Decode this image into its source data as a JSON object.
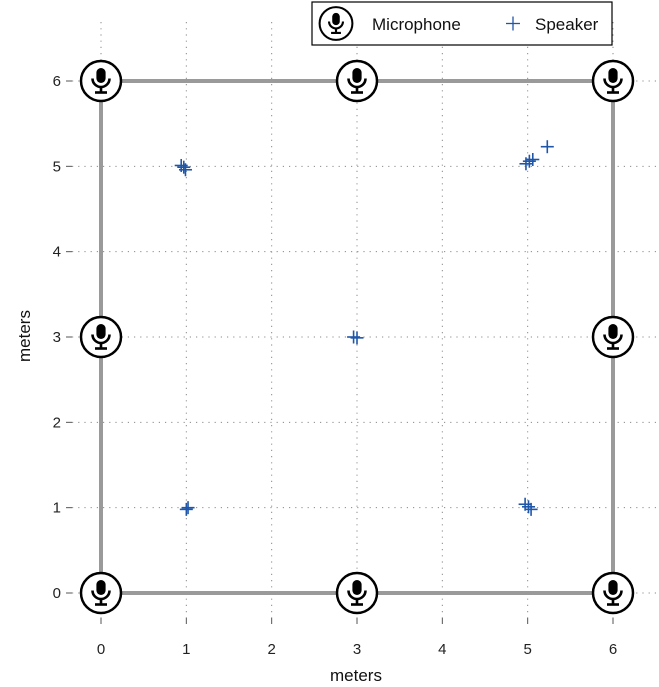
{
  "chart_data": {
    "type": "scatter",
    "title": "",
    "xlabel": "meters",
    "ylabel": "meters",
    "xlim": [
      0,
      6
    ],
    "ylim": [
      0,
      6
    ],
    "x_ticks": [
      "0",
      "1",
      "2",
      "3",
      "4",
      "5",
      "6"
    ],
    "y_ticks": [
      "0",
      "1",
      "2",
      "3",
      "4",
      "5",
      "6"
    ],
    "grid": "dotted",
    "room_outline": {
      "x": [
        0,
        6,
        6,
        0,
        0
      ],
      "y": [
        0,
        0,
        6,
        6,
        0
      ],
      "color": "#9a9a9a"
    },
    "legend": {
      "placement": "top-right",
      "entries": [
        "Microphone",
        "Speaker"
      ]
    },
    "series": [
      {
        "name": "Microphone",
        "marker": "microphone-icon",
        "color": "#000000",
        "points": [
          {
            "x": 0,
            "y": 0
          },
          {
            "x": 3,
            "y": 0
          },
          {
            "x": 6,
            "y": 0
          },
          {
            "x": 0,
            "y": 3
          },
          {
            "x": 6,
            "y": 3
          },
          {
            "x": 0,
            "y": 6
          },
          {
            "x": 3,
            "y": 6
          },
          {
            "x": 6,
            "y": 6
          }
        ]
      },
      {
        "name": "Speaker",
        "marker": "plus",
        "color": "#1f56a8",
        "points": [
          {
            "x": 0.94,
            "y": 5.01
          },
          {
            "x": 0.97,
            "y": 4.99
          },
          {
            "x": 0.99,
            "y": 4.96
          },
          {
            "x": 1.0,
            "y": 0.98
          },
          {
            "x": 1.02,
            "y": 1.0
          },
          {
            "x": 2.96,
            "y": 3.0
          },
          {
            "x": 3.0,
            "y": 2.99
          },
          {
            "x": 4.98,
            "y": 5.03
          },
          {
            "x": 5.02,
            "y": 5.06
          },
          {
            "x": 5.06,
            "y": 5.08
          },
          {
            "x": 4.97,
            "y": 1.04
          },
          {
            "x": 5.01,
            "y": 1.01
          },
          {
            "x": 5.04,
            "y": 0.98
          },
          {
            "x": 5.23,
            "y": 5.23
          }
        ]
      }
    ]
  }
}
